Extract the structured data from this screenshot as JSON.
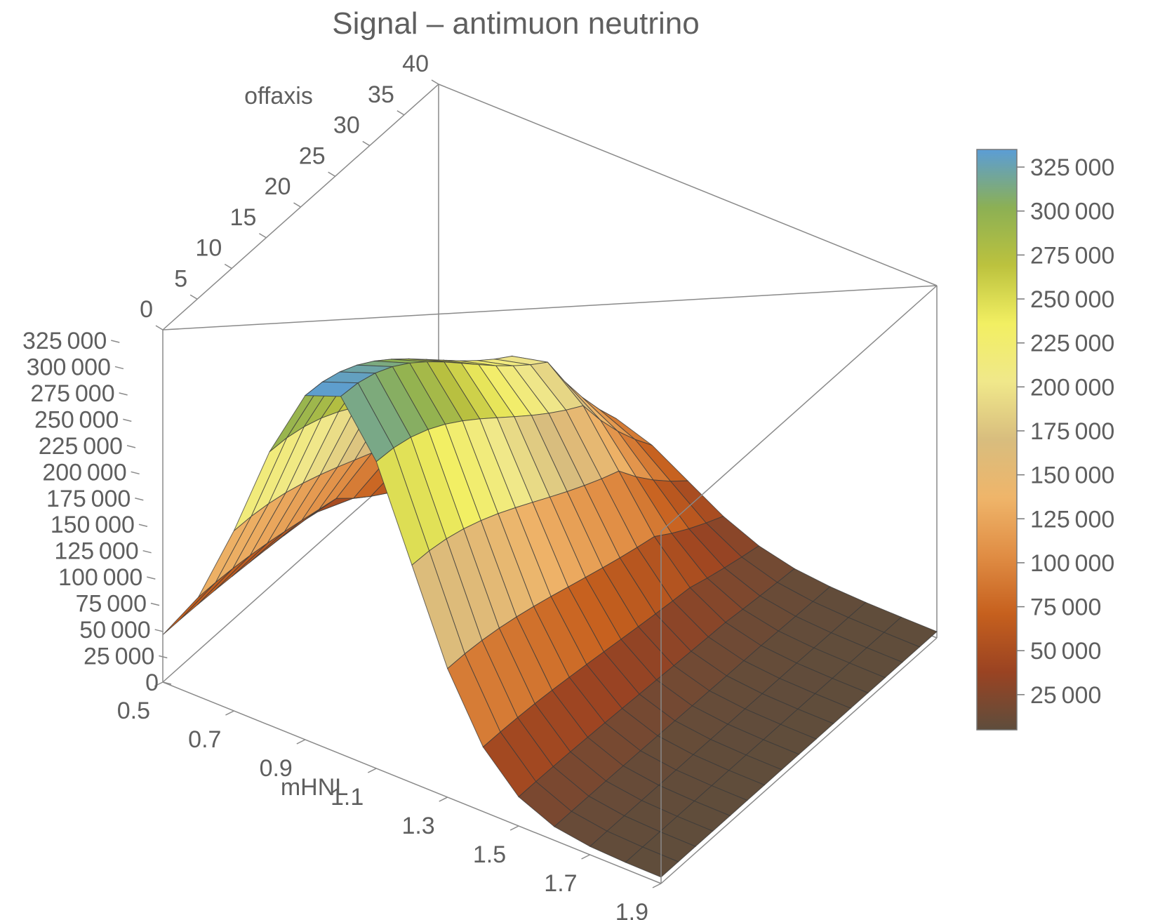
{
  "chart_data": {
    "type": "surface3d",
    "title": "Signal – antimuon neutrino",
    "x_axis": {
      "label": "mHNL",
      "range": [
        0.5,
        1.9
      ],
      "ticks": [
        "0.5",
        "0.7",
        "0.9",
        "1.1",
        "1.3",
        "1.5",
        "1.7",
        "1.9"
      ]
    },
    "y_axis": {
      "label": "offaxis",
      "range": [
        0,
        40
      ],
      "ticks": [
        "0",
        "5",
        "10",
        "15",
        "20",
        "25",
        "30",
        "35",
        "40"
      ]
    },
    "z_axis": {
      "label": "",
      "range": [
        0,
        335000
      ],
      "ticks": [
        "0",
        "25 000",
        "50 000",
        "75 000",
        "100 000",
        "125 000",
        "150 000",
        "175 000",
        "200 000",
        "225 000",
        "250 000",
        "275 000",
        "300 000",
        "325 000"
      ]
    },
    "colorbar": {
      "range": [
        5000,
        335000
      ],
      "ticks": [
        "25 000",
        "50 000",
        "75 000",
        "100 000",
        "125 000",
        "150 000",
        "175 000",
        "200 000",
        "225 000",
        "250 000",
        "275 000",
        "300 000",
        "325 000"
      ],
      "gradient": [
        "#5e4d3c",
        "#9a4322",
        "#c6601e",
        "#e08d44",
        "#efb56a",
        "#d8bd7e",
        "#f0e88a",
        "#f2ef62",
        "#bcc23e",
        "#8cb054",
        "#5b9dd6"
      ]
    },
    "mHNL": [
      0.5,
      0.6,
      0.7,
      0.8,
      0.9,
      1.0,
      1.1,
      1.2,
      1.3,
      1.4,
      1.5,
      1.6,
      1.7,
      1.8,
      1.9
    ],
    "offaxis": [
      0,
      2.5,
      5,
      7.5,
      10,
      12.5,
      15,
      17.5,
      20,
      22.5,
      25,
      27.5,
      30,
      32.5,
      35,
      37.5,
      40
    ],
    "surface_grid_size": [
      15,
      17
    ]
  }
}
